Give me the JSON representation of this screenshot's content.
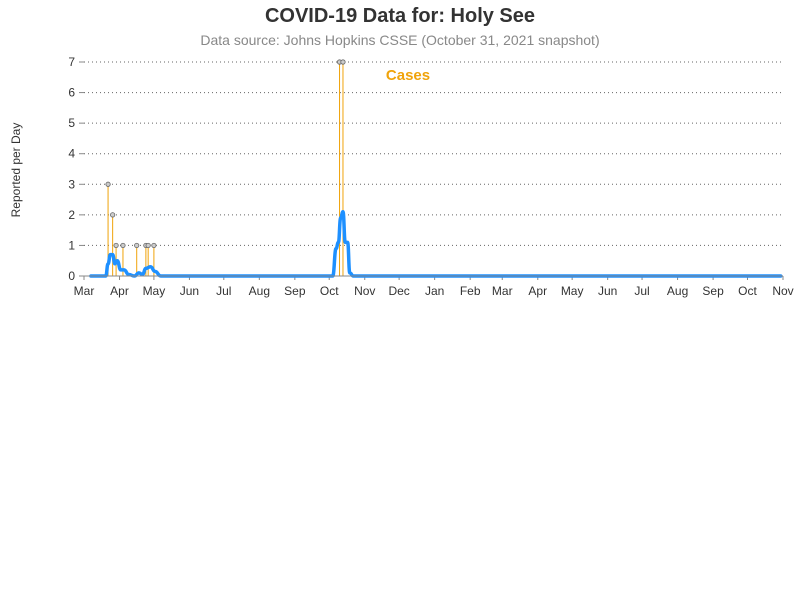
{
  "title": "COVID-19 Data for: Holy See",
  "subtitle": "Data source: Johns Hopkins CSSE (October 31, 2021 snapshot)",
  "colors": {
    "cases": "#f0a30a",
    "average": "#1e90ff",
    "marker_fill": "#cccccc",
    "grid": "#666666"
  },
  "chart_data": {
    "type": "line",
    "ylabel": "Reported per Day",
    "ylim": [
      0,
      7
    ],
    "yticks": [
      "0",
      "1",
      "2",
      "3",
      "4",
      "5",
      "6",
      "7"
    ],
    "xlim": [
      "2020-03-01",
      "2021-11-01"
    ],
    "xticks": [
      {
        "date": "2020-03-01",
        "label": "Mar"
      },
      {
        "date": "2020-04-01",
        "label": "Apr"
      },
      {
        "date": "2020-05-01",
        "label": "May"
      },
      {
        "date": "2020-06-01",
        "label": "Jun"
      },
      {
        "date": "2020-07-01",
        "label": "Jul"
      },
      {
        "date": "2020-08-01",
        "label": "Aug"
      },
      {
        "date": "2020-09-01",
        "label": "Sep"
      },
      {
        "date": "2020-10-01",
        "label": "Oct"
      },
      {
        "date": "2020-11-01",
        "label": "Nov"
      },
      {
        "date": "2020-12-01",
        "label": "Dec"
      },
      {
        "date": "2021-01-01",
        "label": "Jan"
      },
      {
        "date": "2021-02-01",
        "label": "Feb"
      },
      {
        "date": "2021-03-01",
        "label": "Mar"
      },
      {
        "date": "2021-04-01",
        "label": "Apr"
      },
      {
        "date": "2021-05-01",
        "label": "May"
      },
      {
        "date": "2021-06-01",
        "label": "Jun"
      },
      {
        "date": "2021-07-01",
        "label": "Jul"
      },
      {
        "date": "2021-08-01",
        "label": "Aug"
      },
      {
        "date": "2021-09-01",
        "label": "Sep"
      },
      {
        "date": "2021-10-01",
        "label": "Oct"
      },
      {
        "date": "2021-11-01",
        "label": "Nov"
      }
    ],
    "grid": "horizontal dotted",
    "series": [
      {
        "name": "Cases",
        "style": "needle",
        "points": [
          {
            "date": "2020-03-22",
            "value": 3
          },
          {
            "date": "2020-03-26",
            "value": 2
          },
          {
            "date": "2020-03-29",
            "value": 1
          },
          {
            "date": "2020-04-04",
            "value": 1
          },
          {
            "date": "2020-04-16",
            "value": 1
          },
          {
            "date": "2020-04-24",
            "value": 1
          },
          {
            "date": "2020-04-26",
            "value": 1
          },
          {
            "date": "2020-05-01",
            "value": 1
          },
          {
            "date": "2020-10-10",
            "value": 7
          },
          {
            "date": "2020-10-13",
            "value": 7
          }
        ]
      },
      {
        "style": "smooth-line",
        "points": [
          {
            "date": "2020-03-07",
            "value": 0
          },
          {
            "date": "2020-03-20",
            "value": 0
          },
          {
            "date": "2020-03-22",
            "value": 0.4
          },
          {
            "date": "2020-03-24",
            "value": 0.7
          },
          {
            "date": "2020-03-26",
            "value": 0.7
          },
          {
            "date": "2020-03-28",
            "value": 0.4
          },
          {
            "date": "2020-03-30",
            "value": 0.5
          },
          {
            "date": "2020-04-02",
            "value": 0.2
          },
          {
            "date": "2020-04-05",
            "value": 0.2
          },
          {
            "date": "2020-04-09",
            "value": 0.05
          },
          {
            "date": "2020-04-14",
            "value": 0.0
          },
          {
            "date": "2020-04-18",
            "value": 0.1
          },
          {
            "date": "2020-04-21",
            "value": 0.05
          },
          {
            "date": "2020-04-24",
            "value": 0.25
          },
          {
            "date": "2020-04-28",
            "value": 0.3
          },
          {
            "date": "2020-05-02",
            "value": 0.15
          },
          {
            "date": "2020-05-07",
            "value": 0.0
          },
          {
            "date": "2020-10-04",
            "value": 0.0
          },
          {
            "date": "2020-10-07",
            "value": 0.9
          },
          {
            "date": "2020-10-09",
            "value": 1.1
          },
          {
            "date": "2020-10-11",
            "value": 1.9
          },
          {
            "date": "2020-10-13",
            "value": 2.1
          },
          {
            "date": "2020-10-15",
            "value": 1.1
          },
          {
            "date": "2020-10-17",
            "value": 1.1
          },
          {
            "date": "2020-10-19",
            "value": 0.1
          },
          {
            "date": "2020-10-22",
            "value": 0.0
          },
          {
            "date": "2021-10-30",
            "value": 0.0
          }
        ]
      }
    ],
    "legend": {
      "label": "Cases",
      "placement": "top-center"
    }
  }
}
